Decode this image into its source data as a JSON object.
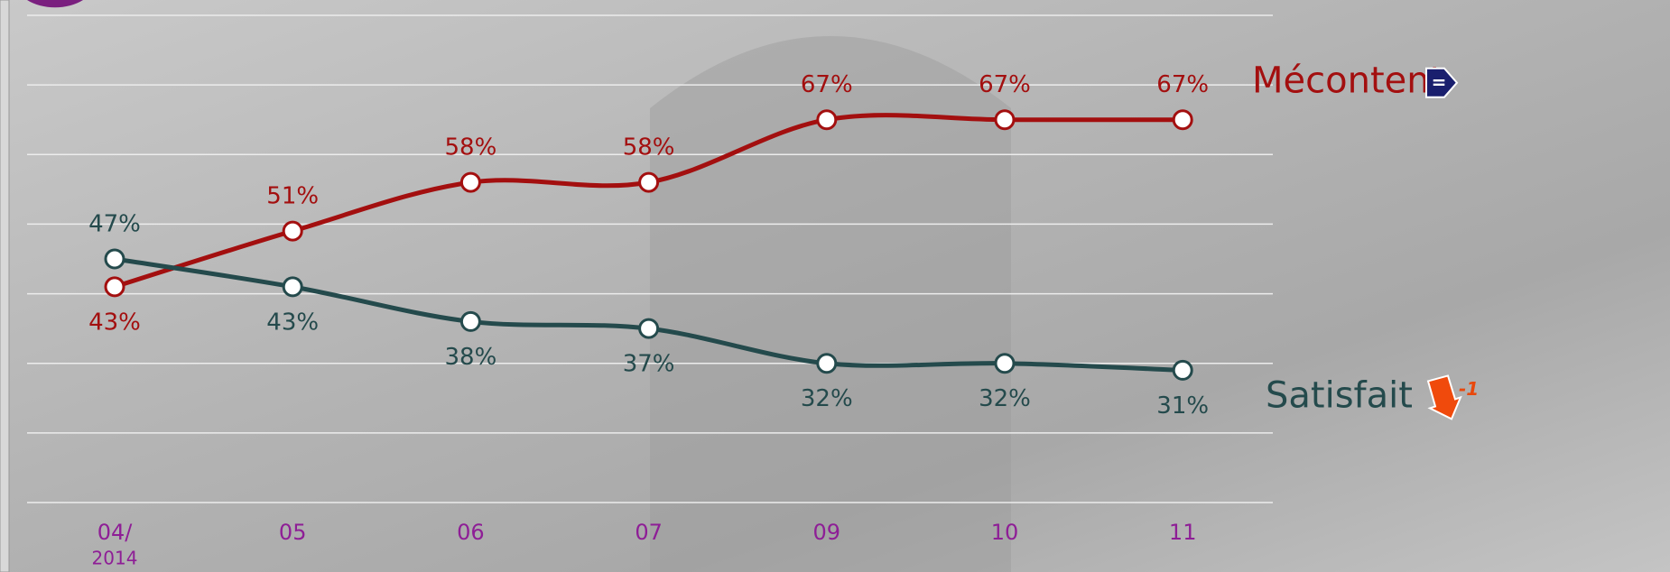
{
  "chart_data": {
    "type": "line",
    "categories": [
      "04/",
      "05",
      "06",
      "07",
      "09",
      "10",
      "11"
    ],
    "year_label": "2014",
    "series": [
      {
        "name": "Mécontent",
        "color": "#a30f0f",
        "values": [
          43,
          51,
          58,
          58,
          67,
          67,
          67
        ],
        "value_labels": [
          "43%",
          "51%",
          "58%",
          "58%",
          "67%",
          "67%",
          "67%"
        ],
        "change": "="
      },
      {
        "name": "Satisfait",
        "color": "#244a4c",
        "values": [
          47,
          43,
          38,
          37,
          32,
          32,
          31
        ],
        "value_labels": [
          "47%",
          "43%",
          "38%",
          "37%",
          "32%",
          "32%",
          "31%"
        ],
        "change": "-1"
      }
    ],
    "ylim": [
      12,
      82
    ],
    "yticks": [
      12,
      22,
      32,
      42,
      52,
      62,
      72,
      82
    ],
    "grid": true
  }
}
